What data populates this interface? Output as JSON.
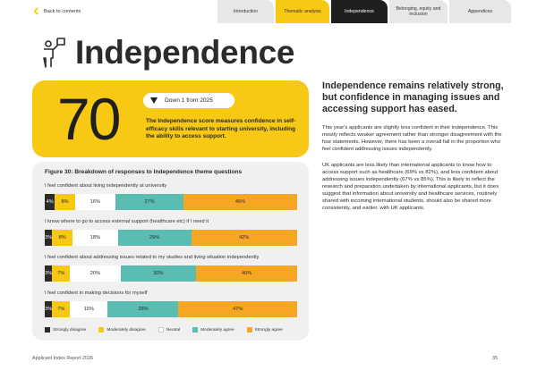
{
  "nav": {
    "back_label": "Back to contents",
    "tabs": [
      {
        "label": "Introduction"
      },
      {
        "label": "Thematic analysis"
      },
      {
        "label": "Independence"
      },
      {
        "label": "Belonging, equity and inclusion"
      },
      {
        "label": "Appendices"
      }
    ]
  },
  "page": {
    "title": "Independence"
  },
  "score": {
    "value": "70",
    "change_label": "Down 1 from 2025",
    "description": "The Independence score measures confidence in self-efficacy skills relevant to starting university, including the ability to access support."
  },
  "chart_data": {
    "type": "bar",
    "stacked": true,
    "orientation": "horizontal",
    "title": "Figure 30: Breakdown of responses to Independence theme questions",
    "categories": [
      "I feel confident about living independently at university",
      "I know where to go to access external support (healthcare etc) if I need it",
      "I feel confident about addressing issues related to my studies and living situation independently",
      "I feel confident in making decisions for myself"
    ],
    "series": [
      {
        "name": "Strongly disagree",
        "color": "#2b2b2b",
        "values": [
          4,
          3,
          3,
          3
        ]
      },
      {
        "name": "Moderately disagree",
        "color": "#f7c814",
        "values": [
          8,
          8,
          7,
          7
        ]
      },
      {
        "name": "Neutral",
        "color": "#ffffff",
        "values": [
          16,
          18,
          20,
          15
        ]
      },
      {
        "name": "Moderately agree",
        "color": "#5bbcb2",
        "values": [
          27,
          29,
          30,
          28
        ]
      },
      {
        "name": "Strongly agree",
        "color": "#f5a623",
        "values": [
          45,
          42,
          40,
          47
        ]
      }
    ],
    "value_suffix": "%",
    "legend_position": "bottom-left"
  },
  "right_column": {
    "headline": "Independence remains relatively strong, but confidence in managing issues and accessing support has eased.",
    "paragraphs": [
      "This year's applicants are slightly less confident in their independence. This mostly reflects weaker agreement rather than stronger disagreement with the four statements. However, there has been a overall fall in the proportion who feel confident addressing issues independently.",
      "UK applicants are less likely than international applicants to know how to access support such as healthcare (69% vs 82%), and less confident about addressing issues independently (67% vs 85%). This is likely to reflect the research and preparation undertaken by international applicants, but it does suggest that information about university and healthcare services, routinely shared with incoming international students, should also be shared more consistently, and earlier, with UK applicants."
    ]
  },
  "footer": {
    "report_name": "Applicant Index Report 2026",
    "page_number": "35"
  }
}
